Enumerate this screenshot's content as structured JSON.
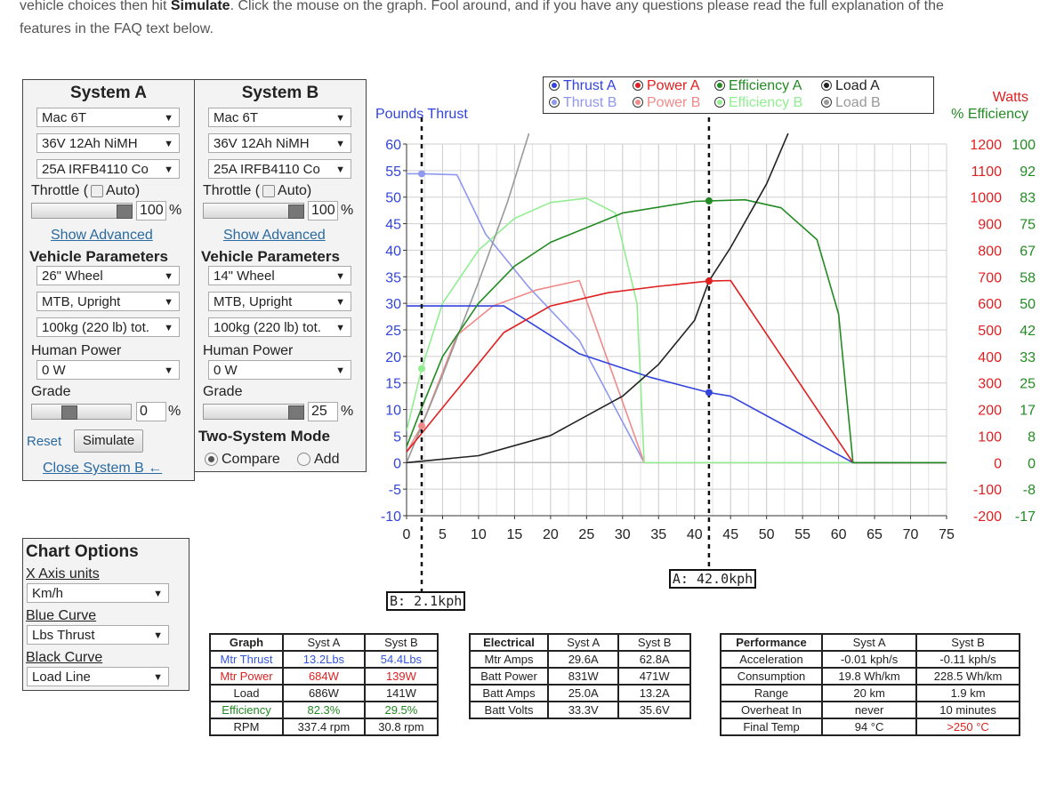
{
  "intro": {
    "line1_prefix": "vehicle choices then hit ",
    "line1_bold": "Simulate",
    "line1_suffix": ". Click the mouse on the graph. Fool around, and if you have any questions please read the full explanation of the",
    "line2": "features in the FAQ text below."
  },
  "system_a": {
    "title": "System A",
    "motor": "Mac 6T",
    "battery": "36V 12Ah NiMH",
    "controller": "25A IRFB4110 Co",
    "throttle_label": "Throttle (",
    "auto_label": "Auto)",
    "throttle_value": "100",
    "percent": "%",
    "show_advanced": "Show Advanced",
    "vehicle_params": "Vehicle Parameters",
    "wheel": "26\"  Wheel",
    "posture": "MTB, Upright",
    "mass": "100kg (220 lb) tot.",
    "human_power_label": "Human Power",
    "human_power": "0 W",
    "grade_label": "Grade",
    "grade_value": "0",
    "grade_level": 0.35,
    "reset": "Reset",
    "simulate": "Simulate",
    "close_b": "Close System B ←"
  },
  "system_b": {
    "title": "System B",
    "motor": "Mac 6T",
    "battery": "36V 12Ah NiMH",
    "controller": "25A IRFB4110 Co",
    "throttle_label": "Throttle (",
    "auto_label": "Auto)",
    "throttle_value": "100",
    "percent": "%",
    "show_advanced": "Show Advanced",
    "vehicle_params": "Vehicle Parameters",
    "wheel": "14\"  Wheel",
    "posture": "MTB, Upright",
    "mass": "100kg (220 lb) tot.",
    "human_power_label": "Human Power",
    "human_power": "0 W",
    "grade_label": "Grade",
    "grade_value": "25",
    "grade_level": 1.0,
    "two_system_mode": "Two-System Mode",
    "compare": "Compare",
    "add": "Add"
  },
  "chart_options": {
    "title": "Chart Options",
    "x_axis_label": "X Axis units",
    "x_axis_value": "Km/h",
    "blue_label": "Blue Curve",
    "blue_value": "Lbs Thrust",
    "black_label": "Black Curve",
    "black_value": "Load Line"
  },
  "legend": {
    "a": [
      "Thrust A",
      "Power A",
      "Efficiency A",
      "Load A"
    ],
    "b": [
      "Thrust B",
      "Power B",
      "Efficiency B",
      "Load B"
    ]
  },
  "colors": {
    "blue": "#3344dd",
    "blue_light": "#8f97ee",
    "red": "#e02020",
    "red_light": "#f08a8a",
    "green": "#238b23",
    "green_light": "#90ee90",
    "black": "#222222",
    "gray": "#999999"
  },
  "cursors": {
    "a_label": "A: 42.0kph",
    "a_x": 42.0,
    "b_label": "B: 2.1kph",
    "b_x": 2.1
  },
  "chart_data": {
    "type": "line",
    "xlabel": "",
    "ylabel_left": "Pounds Thrust",
    "ylabel_right_1": "Watts",
    "ylabel_right_2": "% Efficiency",
    "xlim": [
      0,
      75
    ],
    "ylim": [
      -10,
      60
    ],
    "x_ticks": [
      "0",
      "5",
      "10",
      "15",
      "20",
      "25",
      "30",
      "35",
      "40",
      "45",
      "50",
      "55",
      "60",
      "65",
      "70",
      "75"
    ],
    "y_ticks_left": [
      "60",
      "55",
      "50",
      "45",
      "40",
      "35",
      "30",
      "25",
      "20",
      "15",
      "10",
      "5",
      "0",
      "-5",
      "-10"
    ],
    "y_ticks_watts": [
      "1200",
      "1100",
      "1000",
      "900",
      "800",
      "700",
      "600",
      "500",
      "400",
      "300",
      "200",
      "100",
      "0",
      "-100",
      "-200"
    ],
    "y_ticks_eff": [
      "100",
      "92",
      "83",
      "75",
      "67",
      "58",
      "50",
      "42",
      "33",
      "25",
      "17",
      "8",
      "0",
      "-8",
      "-17"
    ],
    "grid": true,
    "series": [
      {
        "name": "Thrust A",
        "color": "#3344dd",
        "x": [
          0,
          13.5,
          24,
          34,
          42,
          45,
          62,
          75
        ],
        "y": [
          29.5,
          29.5,
          20.5,
          16,
          13.2,
          12.5,
          0,
          0
        ]
      },
      {
        "name": "Thrust B",
        "color": "#8f97ee",
        "x": [
          0,
          2.1,
          7,
          11,
          17,
          24,
          33,
          75
        ],
        "y": [
          54.4,
          54.4,
          54.2,
          43,
          33,
          23,
          0,
          0
        ]
      },
      {
        "name": "Power A",
        "color": "#e02020",
        "x": [
          0,
          13.5,
          20,
          28,
          35,
          42,
          45,
          62,
          75
        ],
        "y": [
          2,
          24.5,
          29.5,
          32,
          33.2,
          34.2,
          34.3,
          0,
          0
        ]
      },
      {
        "name": "Power B",
        "color": "#f08a8a",
        "x": [
          0,
          2.1,
          7,
          12,
          18,
          24,
          33,
          75
        ],
        "y": [
          2,
          6.9,
          24,
          29.5,
          32.5,
          34.3,
          0,
          0
        ]
      },
      {
        "name": "Efficiency A",
        "color": "#238b23",
        "x": [
          0,
          2,
          5,
          10,
          15,
          20,
          30,
          40,
          47,
          52,
          57,
          60,
          62,
          75
        ],
        "y": [
          3,
          10,
          20,
          30,
          37,
          41.5,
          47,
          49.2,
          49.5,
          48,
          42,
          28,
          0,
          0
        ]
      },
      {
        "name": "Efficiency B",
        "color": "#90ee90",
        "x": [
          0,
          2.1,
          5,
          10,
          15,
          20,
          25,
          29,
          32,
          33,
          75
        ],
        "y": [
          6,
          17.7,
          30,
          40,
          46,
          49,
          49.8,
          47,
          30,
          0,
          0
        ]
      },
      {
        "name": "Load A",
        "color": "#222222",
        "x": [
          0,
          10,
          20,
          30,
          35,
          40,
          42,
          45,
          50,
          53
        ],
        "y": [
          0,
          1.3,
          5.1,
          12.5,
          18.5,
          26.8,
          34.2,
          40.5,
          52.5,
          62
        ]
      },
      {
        "name": "Load B",
        "color": "#999999",
        "x": [
          0,
          2.1,
          5,
          10,
          14,
          17
        ],
        "y": [
          0,
          6.9,
          16.5,
          34,
          49,
          62
        ]
      }
    ]
  },
  "graph_table": {
    "headers": [
      "Graph",
      "Syst A",
      "Syst B"
    ],
    "rows": [
      {
        "label": "Mtr Thrust",
        "a": "13.2Lbs",
        "b": "54.4Lbs",
        "color": "blue"
      },
      {
        "label": "Mtr Power",
        "a": "684W",
        "b": "139W",
        "color": "red"
      },
      {
        "label": "Load",
        "a": "686W",
        "b": "141W",
        "color": "none"
      },
      {
        "label": "Efficiency",
        "a": "82.3%",
        "b": "29.5%",
        "color": "green"
      },
      {
        "label": "RPM",
        "a": "337.4 rpm",
        "b": "30.8 rpm",
        "color": "none"
      }
    ]
  },
  "electrical_table": {
    "headers": [
      "Electrical",
      "Syst A",
      "Syst B"
    ],
    "rows": [
      {
        "label": "Mtr Amps",
        "a": "29.6A",
        "b": "62.8A"
      },
      {
        "label": "Batt Power",
        "a": "831W",
        "b": "471W"
      },
      {
        "label": "Batt Amps",
        "a": "25.0A",
        "b": "13.2A"
      },
      {
        "label": "Batt Volts",
        "a": "33.3V",
        "b": "35.6V"
      }
    ]
  },
  "performance_table": {
    "headers": [
      "Performance",
      "Syst A",
      "Syst B"
    ],
    "rows": [
      {
        "label": "Acceleration",
        "a": "-0.01 kph/s",
        "b": "-0.11 kph/s"
      },
      {
        "label": "Consumption",
        "a": "19.8 Wh/km",
        "b": "228.5 Wh/km"
      },
      {
        "label": "Range",
        "a": "20 km",
        "b": "1.9 km"
      },
      {
        "label": "Overheat In",
        "a": "never",
        "b": "10 minutes"
      },
      {
        "label": "Final Temp",
        "a": "94 °C",
        "b": ">250 °C"
      }
    ]
  }
}
